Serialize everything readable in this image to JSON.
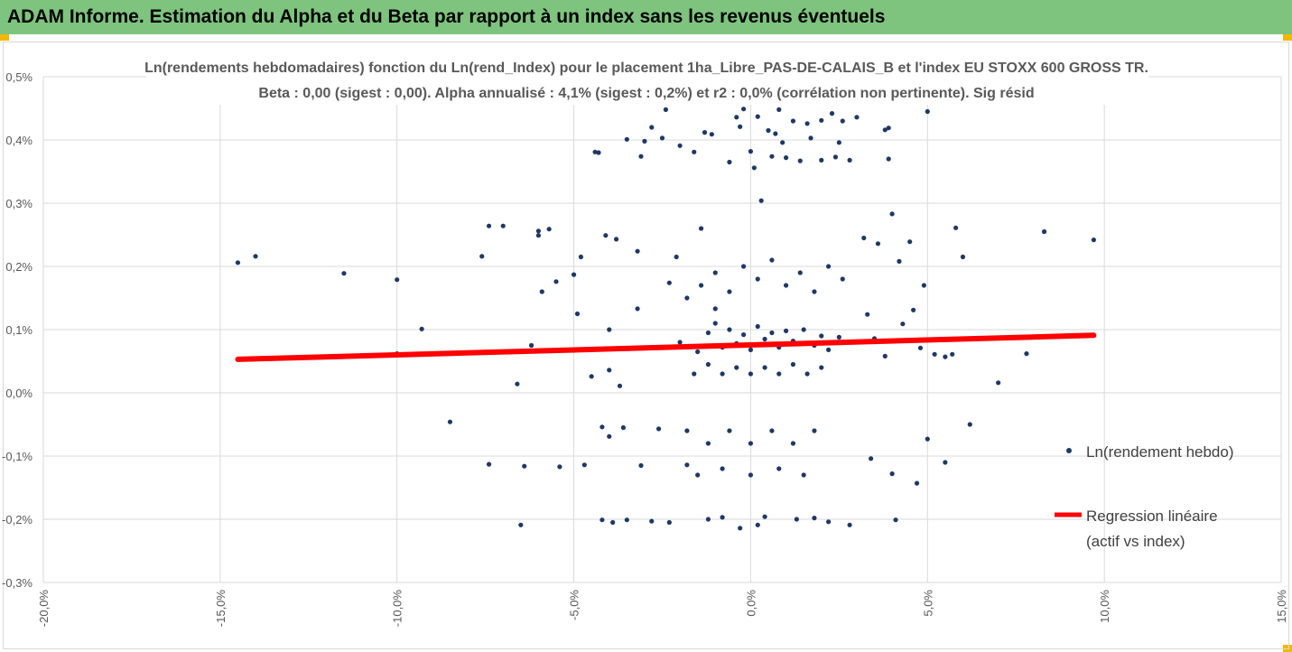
{
  "header": {
    "title": "ADAM Informe. Estimation du Alpha et du Beta par rapport à un index sans les revenus éventuels"
  },
  "colors": {
    "banner": "#7ec47e",
    "points": "#1f3864",
    "regression": "#ff0000",
    "grid": "#d9d9d9",
    "text": "#595959"
  },
  "chart_data": {
    "type": "scatter",
    "title": [
      "Ln(rendements hebdomadaires) fonction du Ln(rend_Index) pour le placement 1ha_Libre_PAS-DE-CALAIS_B et l'index EU STOXX 600 GROSS TR.",
      "Beta : 0,00 (sigest : 0,00). Alpha annualisé : 4,1% (sigest : 0,2%) et r2 : 0,0% (corrélation non pertinente). Sig résid"
    ],
    "xlim": [
      -0.2,
      0.15
    ],
    "ylim": [
      -0.003,
      0.005
    ],
    "x_ticks": [
      -0.2,
      -0.15,
      -0.1,
      -0.05,
      0.0,
      0.05,
      0.1,
      0.15
    ],
    "x_tick_labels": [
      "-20,0%",
      "-15,0%",
      "-10,0%",
      "-5,0%",
      "0,0%",
      "5,0%",
      "10,0%",
      "15,0%"
    ],
    "y_ticks": [
      -0.003,
      -0.002,
      -0.001,
      0.0,
      0.001,
      0.002,
      0.003,
      0.004,
      0.005
    ],
    "y_tick_labels": [
      "-0,3%",
      "-0,2%",
      "-0,1%",
      "0,0%",
      "0,1%",
      "0,2%",
      "0,3%",
      "0,4%",
      "0,5%"
    ],
    "grid": "vertical and horizontal",
    "legend": {
      "position": "right",
      "entries": [
        {
          "label": "Ln(rendement hebdo)",
          "kind": "marker"
        },
        {
          "label_lines": [
            "Regression linéaire",
            "(actif vs index)"
          ],
          "kind": "line"
        }
      ]
    },
    "series": [
      {
        "name": "Ln(rendement hebdo)",
        "kind": "scatter",
        "points": [
          [
            -0.145,
            0.00206
          ],
          [
            -0.14,
            0.00216
          ],
          [
            -0.115,
            0.00189
          ],
          [
            -0.1,
            0.00179
          ],
          [
            -0.1,
            0.00062
          ],
          [
            -0.093,
            0.00101
          ],
          [
            -0.085,
            0.00062
          ],
          [
            -0.085,
            -0.00046
          ],
          [
            -0.076,
            0.00216
          ],
          [
            -0.074,
            0.00264
          ],
          [
            -0.074,
            -0.00113
          ],
          [
            -0.07,
            0.00264
          ],
          [
            -0.066,
            0.00014
          ],
          [
            -0.065,
            -0.00209
          ],
          [
            -0.064,
            -0.00116
          ],
          [
            -0.062,
            0.00075
          ],
          [
            -0.06,
            0.00256
          ],
          [
            -0.06,
            0.00249
          ],
          [
            -0.059,
            0.0016
          ],
          [
            -0.057,
            0.00259
          ],
          [
            -0.055,
            0.00176
          ],
          [
            -0.054,
            -0.00117
          ],
          [
            -0.05,
            0.00187
          ],
          [
            -0.049,
            0.00125
          ],
          [
            -0.048,
            0.00215
          ],
          [
            -0.047,
            -0.00114
          ],
          [
            -0.045,
            0.00026
          ],
          [
            -0.044,
            0.00381
          ],
          [
            -0.043,
            0.0038
          ],
          [
            -0.042,
            -0.00054
          ],
          [
            -0.042,
            -0.00201
          ],
          [
            -0.041,
            0.00249
          ],
          [
            -0.04,
            0.001
          ],
          [
            -0.04,
            0.00036
          ],
          [
            -0.04,
            -0.00069
          ],
          [
            -0.039,
            -0.00205
          ],
          [
            -0.038,
            0.00243
          ],
          [
            -0.037,
            0.00011
          ],
          [
            -0.036,
            -0.00055
          ],
          [
            -0.035,
            -0.00201
          ],
          [
            -0.035,
            0.00401
          ],
          [
            -0.032,
            0.00133
          ],
          [
            -0.032,
            0.00224
          ],
          [
            -0.031,
            0.00374
          ],
          [
            -0.031,
            -0.00115
          ],
          [
            -0.03,
            0.00398
          ],
          [
            -0.028,
            0.0042
          ],
          [
            -0.028,
            -0.00203
          ],
          [
            -0.026,
            -0.00057
          ],
          [
            -0.025,
            0.00403
          ],
          [
            -0.024,
            0.00448
          ],
          [
            -0.023,
            0.00174
          ],
          [
            -0.023,
            -0.00205
          ],
          [
            -0.021,
            0.00215
          ],
          [
            -0.02,
            0.00391
          ],
          [
            -0.018,
            -0.00114
          ],
          [
            -0.016,
            0.00381
          ],
          [
            -0.014,
            0.0026
          ],
          [
            -0.013,
            0.00412
          ],
          [
            -0.012,
            -0.002
          ],
          [
            -0.011,
            0.00409
          ],
          [
            -0.01,
            0.00133
          ],
          [
            -0.008,
            -0.00197
          ],
          [
            -0.006,
            0.00365
          ],
          [
            -0.004,
            0.00436
          ],
          [
            -0.003,
            0.00421
          ],
          [
            -0.003,
            -0.00214
          ],
          [
            -0.002,
            0.00449
          ],
          [
            0.0,
            0.00382
          ],
          [
            0.001,
            0.00356
          ],
          [
            0.002,
            0.00437
          ],
          [
            0.002,
            -0.00209
          ],
          [
            0.003,
            0.00304
          ],
          [
            0.004,
            -0.00196
          ],
          [
            0.005,
            0.00415
          ],
          [
            0.006,
            0.00374
          ],
          [
            0.007,
            0.0041
          ],
          [
            0.008,
            0.00448
          ],
          [
            0.009,
            0.00396
          ],
          [
            0.01,
            0.00372
          ],
          [
            0.012,
            0.0043
          ],
          [
            0.013,
            -0.002
          ],
          [
            0.014,
            0.00367
          ],
          [
            0.016,
            0.00426
          ],
          [
            0.017,
            0.00403
          ],
          [
            0.018,
            -0.00198
          ],
          [
            0.02,
            0.00368
          ],
          [
            0.02,
            0.00431
          ],
          [
            0.022,
            -0.00204
          ],
          [
            0.023,
            0.00442
          ],
          [
            0.024,
            0.00373
          ],
          [
            0.025,
            0.00396
          ],
          [
            0.026,
            0.0043
          ],
          [
            0.028,
            -0.00209
          ],
          [
            0.028,
            0.00368
          ],
          [
            0.03,
            0.00436
          ],
          [
            0.032,
            0.00245
          ],
          [
            0.033,
            0.00124
          ],
          [
            0.034,
            -0.00104
          ],
          [
            0.035,
            0.00086
          ],
          [
            0.036,
            0.00236
          ],
          [
            0.038,
            0.00416
          ],
          [
            0.038,
            0.00058
          ],
          [
            0.039,
            0.0037
          ],
          [
            0.039,
            0.00419
          ],
          [
            0.04,
            0.00283
          ],
          [
            0.04,
            -0.00128
          ],
          [
            0.041,
            -0.00201
          ],
          [
            0.042,
            0.00208
          ],
          [
            0.043,
            0.00109
          ],
          [
            0.045,
            0.00239
          ],
          [
            0.046,
            0.00131
          ],
          [
            0.047,
            -0.00143
          ],
          [
            0.048,
            0.00071
          ],
          [
            0.049,
            0.0017
          ],
          [
            0.05,
            0.00445
          ],
          [
            0.05,
            -0.00073
          ],
          [
            0.052,
            0.00061
          ],
          [
            0.055,
            -0.0011
          ],
          [
            0.055,
            0.00057
          ],
          [
            0.057,
            0.00061
          ],
          [
            0.058,
            0.00261
          ],
          [
            0.06,
            0.00215
          ],
          [
            0.062,
            -0.0005
          ],
          [
            0.07,
            0.00016
          ],
          [
            0.078,
            0.00062
          ],
          [
            0.083,
            0.00255
          ],
          [
            0.097,
            0.00242
          ],
          [
            -0.02,
            0.0008
          ],
          [
            -0.015,
            0.00065
          ],
          [
            -0.012,
            0.00095
          ],
          [
            -0.01,
            0.0011
          ],
          [
            -0.008,
            0.00072
          ],
          [
            -0.006,
            0.001
          ],
          [
            -0.004,
            0.00078
          ],
          [
            -0.002,
            0.00092
          ],
          [
            0.0,
            0.00068
          ],
          [
            0.002,
            0.00105
          ],
          [
            0.004,
            0.00085
          ],
          [
            0.006,
            0.00095
          ],
          [
            0.008,
            0.00072
          ],
          [
            0.01,
            0.00098
          ],
          [
            0.012,
            0.00082
          ],
          [
            0.015,
            0.001
          ],
          [
            0.018,
            0.00075
          ],
          [
            0.02,
            0.0009
          ],
          [
            0.022,
            0.00068
          ],
          [
            0.025,
            0.00088
          ],
          [
            -0.018,
            0.0015
          ],
          [
            -0.014,
            0.0017
          ],
          [
            -0.01,
            0.0019
          ],
          [
            -0.006,
            0.0016
          ],
          [
            -0.002,
            0.002
          ],
          [
            0.002,
            0.0018
          ],
          [
            0.006,
            0.0021
          ],
          [
            0.01,
            0.0017
          ],
          [
            0.014,
            0.0019
          ],
          [
            0.018,
            0.0016
          ],
          [
            0.022,
            0.002
          ],
          [
            0.026,
            0.0018
          ],
          [
            -0.016,
            0.0003
          ],
          [
            -0.012,
            0.00045
          ],
          [
            -0.008,
            0.0003
          ],
          [
            -0.004,
            0.0004
          ],
          [
            0.0,
            0.0003
          ],
          [
            0.004,
            0.0004
          ],
          [
            0.008,
            0.0003
          ],
          [
            0.012,
            0.00045
          ],
          [
            0.016,
            0.0003
          ],
          [
            0.02,
            0.0004
          ],
          [
            -0.018,
            -0.0006
          ],
          [
            -0.012,
            -0.0008
          ],
          [
            -0.006,
            -0.0006
          ],
          [
            0.0,
            -0.0008
          ],
          [
            0.006,
            -0.0006
          ],
          [
            0.012,
            -0.0008
          ],
          [
            0.018,
            -0.0006
          ],
          [
            -0.015,
            -0.0013
          ],
          [
            -0.008,
            -0.0012
          ],
          [
            0.0,
            -0.0013
          ],
          [
            0.008,
            -0.0012
          ],
          [
            0.015,
            -0.0013
          ]
        ]
      },
      {
        "name": "Regression linéaire (actif vs index)",
        "kind": "line",
        "points": [
          [
            -0.145,
            0.00053
          ],
          [
            0.097,
            0.00091
          ]
        ]
      }
    ]
  }
}
